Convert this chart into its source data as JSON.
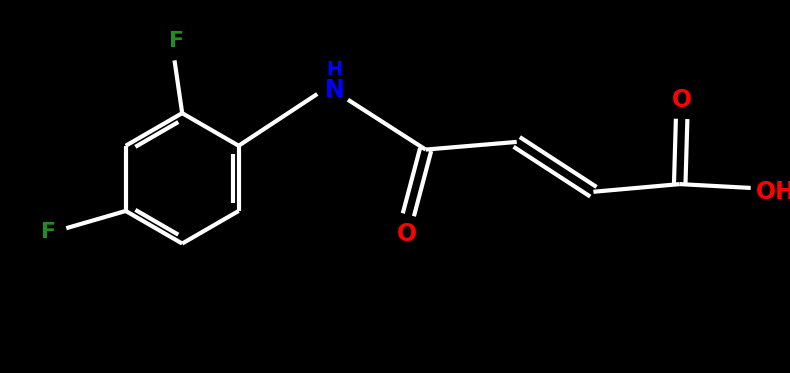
{
  "background_color": "#000000",
  "bond_color": "#ffffff",
  "bond_width": 3.0,
  "atom_colors": {
    "C": "#ffffff",
    "H": "#ffffff",
    "N": "#0000ff",
    "O": "#ff0000",
    "F": "#228B22"
  },
  "fig_width": 7.9,
  "fig_height": 3.73,
  "xlim": [
    0,
    790
  ],
  "ylim": [
    0,
    373
  ]
}
